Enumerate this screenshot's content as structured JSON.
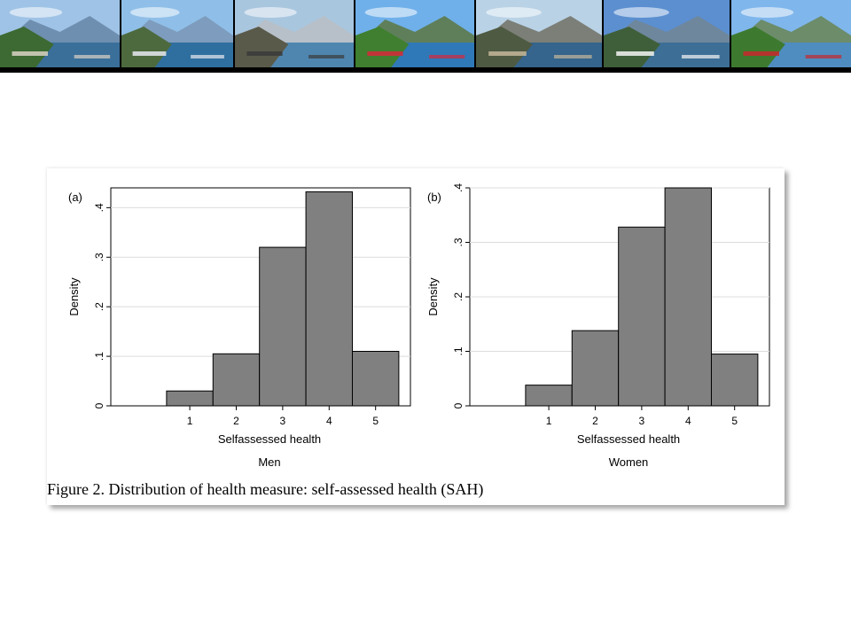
{
  "banner": {
    "photos": [
      {
        "sky": "#9fc3e6",
        "far": "#6f8fb0",
        "land": "#3c6a32",
        "water": "#3a6f9a",
        "accent": "#d8d2c4"
      },
      {
        "sky": "#8fbfe8",
        "far": "#7e9cbd",
        "land": "#4d6a3e",
        "water": "#2f6f9f",
        "accent": "#e8e8f0"
      },
      {
        "sky": "#a9c6df",
        "far": "#b7c0c8",
        "land": "#5a5a4a",
        "water": "#4f86b0",
        "accent": "#3a3a3a"
      },
      {
        "sky": "#6fb0ea",
        "far": "#5f7f5a",
        "land": "#3f7f2f",
        "water": "#2f79b8",
        "accent": "#d8283a"
      },
      {
        "sky": "#b9d2e6",
        "far": "#7b7f77",
        "land": "#4f5a42",
        "water": "#35648c",
        "accent": "#c4b79a"
      },
      {
        "sky": "#5b8fd0",
        "far": "#6f879c",
        "land": "#3f5f3a",
        "water": "#3d6f96",
        "accent": "#f4f4f4"
      },
      {
        "sky": "#7fb6ec",
        "far": "#6c8c6a",
        "land": "#3d7a2f",
        "water": "#4f8cc0",
        "accent": "#c8282c"
      }
    ]
  },
  "figure": {
    "caption": "Figure 2. Distribution of health measure: self-assessed health (SAH)",
    "bar_fill": "#808080",
    "bar_stroke": "#000000",
    "grid_color": "#dcdcdc"
  },
  "chart_data": [
    {
      "type": "bar",
      "panel_letter": "(a)",
      "categories": [
        "1",
        "2",
        "3",
        "4",
        "5"
      ],
      "values": [
        0.03,
        0.105,
        0.32,
        0.432,
        0.11
      ],
      "xlabel": "Selfassessed health",
      "ylabel": "Density",
      "subtitle": "Men",
      "yticks": [
        "0",
        ".1",
        ".2",
        ".3",
        ".4"
      ],
      "ylim": [
        0,
        0.44
      ],
      "grid": true
    },
    {
      "type": "bar",
      "panel_letter": "(b)",
      "categories": [
        "1",
        "2",
        "3",
        "4",
        "5"
      ],
      "values": [
        0.038,
        0.138,
        0.328,
        0.4,
        0.095
      ],
      "xlabel": "Selfassessed health",
      "ylabel": "Density",
      "subtitle": "Women",
      "yticks": [
        "0",
        ".1",
        ".2",
        ".3",
        ".4"
      ],
      "ylim": [
        0,
        0.4
      ],
      "grid": true
    }
  ]
}
